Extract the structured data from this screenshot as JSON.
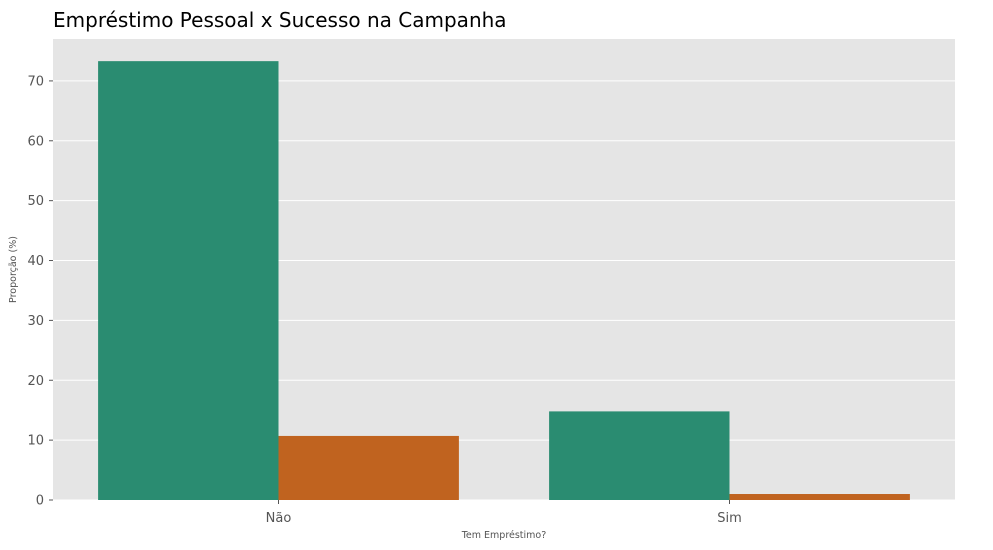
{
  "chart_data": {
    "type": "bar",
    "title": "Empréstimo Pessoal x Sucesso na Campanha",
    "xlabel": "Tem Empréstimo?",
    "ylabel": "Proporção (%)",
    "categories": [
      "Não",
      "Sim"
    ],
    "series": [
      {
        "color": "#2a8c71",
        "values": [
          73.3,
          14.8
        ]
      },
      {
        "color": "#c0631f",
        "values": [
          10.7,
          1.0
        ]
      }
    ],
    "ylim": [
      0,
      77
    ],
    "yticks": [
      0,
      10,
      20,
      30,
      40,
      50,
      60,
      70
    ],
    "grid": true,
    "background": "#e5e5e5"
  }
}
